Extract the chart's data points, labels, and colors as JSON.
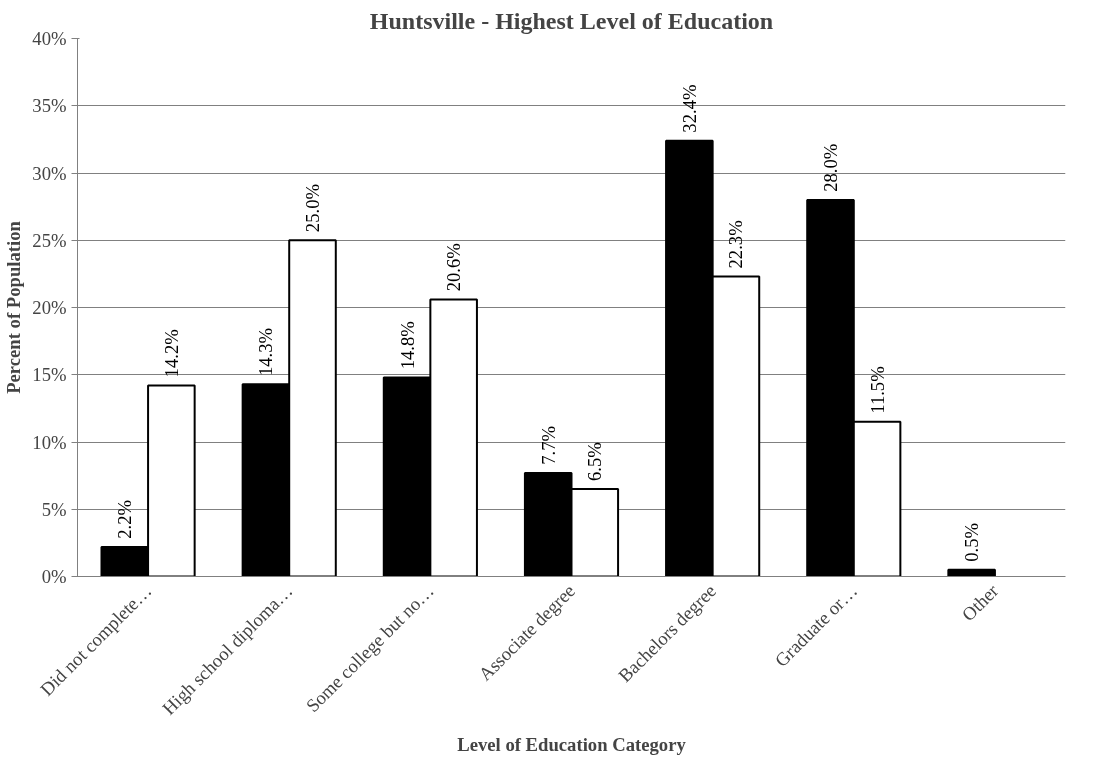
{
  "chart_data": {
    "type": "bar",
    "title": "Huntsville - Highest Level of Education",
    "xlabel": "Level of Education Category",
    "ylabel": "Percent of Population",
    "categories": [
      "Did not complete…",
      "High school diploma…",
      "Some college but no…",
      "Associate degree",
      "Bachelors degree",
      "Graduate or…",
      "Other"
    ],
    "series": [
      {
        "color": "#000000",
        "values": [
          2.2,
          14.3,
          14.8,
          7.7,
          32.4,
          28.0,
          0.5
        ],
        "value_labels": [
          "2.2%",
          "14.3%",
          "14.8%",
          "7.7%",
          "32.4%",
          "28.0%",
          "0.5%"
        ]
      },
      {
        "color": "#ffffff",
        "values": [
          14.2,
          25.0,
          20.6,
          6.5,
          22.3,
          11.5,
          null
        ],
        "value_labels": [
          "14.2%",
          "25.0%",
          "20.6%",
          "6.5%",
          "22.3%",
          "11.5%",
          null
        ]
      }
    ],
    "ylim": [
      0,
      40
    ],
    "yticks": [
      {
        "value": 0,
        "label": "0%"
      },
      {
        "value": 5,
        "label": "5%"
      },
      {
        "value": 10,
        "label": "10%"
      },
      {
        "value": 15,
        "label": "15%"
      },
      {
        "value": 20,
        "label": "20%"
      },
      {
        "value": 25,
        "label": "25%"
      },
      {
        "value": 30,
        "label": "30%"
      },
      {
        "value": 35,
        "label": "35%"
      },
      {
        "value": 40,
        "label": "40%"
      }
    ],
    "grid": "y"
  }
}
